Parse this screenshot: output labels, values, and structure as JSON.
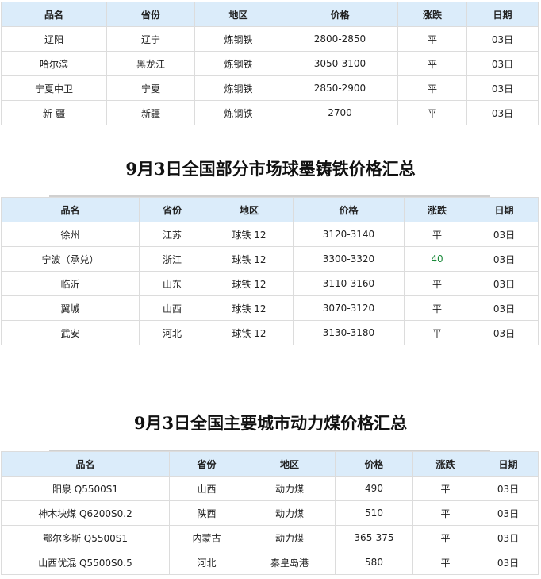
{
  "headers": [
    "品名",
    "省份",
    "地区",
    "价格",
    "涨跌",
    "日期"
  ],
  "table1": {
    "rows": [
      [
        "辽阳",
        "辽宁",
        "炼钢铁",
        "2800-2850",
        "平",
        "03日"
      ],
      [
        "哈尔滨",
        "黑龙江",
        "炼钢铁",
        "3050-3100",
        "平",
        "03日"
      ],
      [
        "宁夏中卫",
        "宁夏",
        "炼钢铁",
        "2850-2900",
        "平",
        "03日"
      ],
      [
        "新-疆",
        "新疆",
        "炼钢铁",
        "2700",
        "平",
        "03日"
      ]
    ]
  },
  "title2": "9月3日全国部分市场球墨铸铁价格汇总",
  "table2": {
    "rows": [
      [
        "徐州",
        "江苏",
        "球铁 12",
        "3120-3140",
        "平",
        "03日"
      ],
      [
        "宁波（承兑）",
        "浙江",
        "球铁 12",
        "3300-3320",
        "40",
        "03日"
      ],
      [
        "临沂",
        "山东",
        "球铁 12",
        "3110-3160",
        "平",
        "03日"
      ],
      [
        "翼城",
        "山西",
        "球铁 12",
        "3070-3120",
        "平",
        "03日"
      ],
      [
        "武安",
        "河北",
        "球铁 12",
        "3130-3180",
        "平",
        "03日"
      ]
    ]
  },
  "title3": "9月3日全国主要城市动力煤价格汇总",
  "table3": {
    "rows": [
      [
        "阳泉 Q5500S1",
        "山西",
        "动力煤",
        "490",
        "平",
        "03日"
      ],
      [
        "神木块煤 Q6200S0.2",
        "陕西",
        "动力煤",
        "510",
        "平",
        "03日"
      ],
      [
        "鄂尔多斯 Q5500S1",
        "内蒙古",
        "动力煤",
        "365-375",
        "平",
        "03日"
      ],
      [
        "山西优混 Q5500S0.5",
        "河北",
        "秦皇岛港",
        "580",
        "平",
        "03日"
      ]
    ]
  },
  "colors": {
    "header_bg": "#dbecfa",
    "up": "#1a8a3a"
  }
}
